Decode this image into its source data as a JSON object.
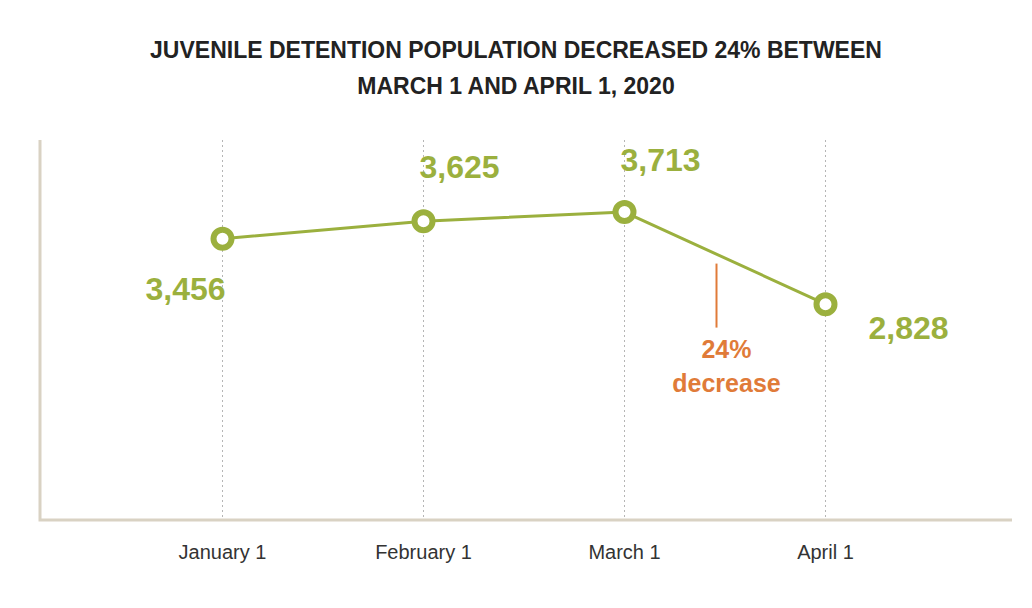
{
  "chart_data": {
    "type": "line",
    "title": "JUVENILE DETENTION POPULATION DECREASED 24% BETWEEN MARCH 1 AND APRIL 1, 2020",
    "categories": [
      "January 1",
      "February 1",
      "March 1",
      "April 1"
    ],
    "values": [
      3456,
      3625,
      3713,
      2828
    ],
    "value_labels": [
      "3,456",
      "3,625",
      "3,713",
      "2,828"
    ],
    "color": "#9bb03e",
    "marker": "circle",
    "data_labels": true,
    "ylim": [
      750,
      4400
    ],
    "yticks": [],
    "tick_labels": "x",
    "grid": true,
    "annotations": [
      {
        "text": "24% decrease",
        "color": "#e07b39",
        "from": "March 1",
        "to": "April 1"
      }
    ]
  }
}
